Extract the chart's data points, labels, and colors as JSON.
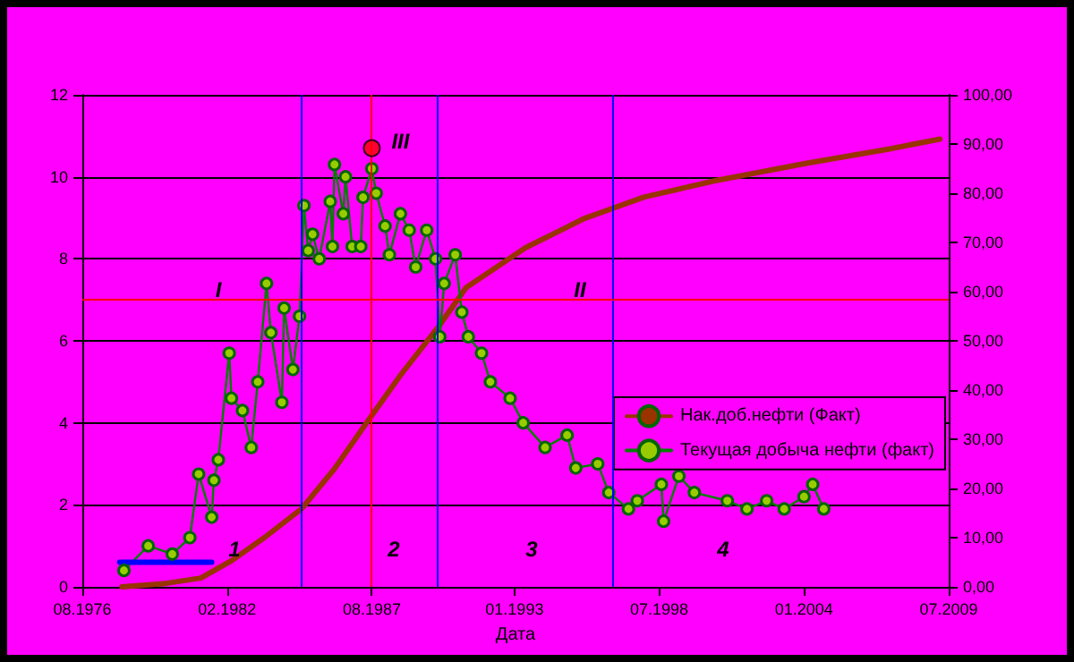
{
  "chart_data": {
    "type": "line",
    "xlabel": "Дата",
    "xlim": [
      "1976-08",
      "2009-07"
    ],
    "xticks": [
      {
        "value": "1976-08",
        "label": "08.1976"
      },
      {
        "value": "1982-02",
        "label": "02.1982"
      },
      {
        "value": "1987-08",
        "label": "08.1987"
      },
      {
        "value": "1993-01",
        "label": "01.1993"
      },
      {
        "value": "1998-07",
        "label": "07.1998"
      },
      {
        "value": "2004-01",
        "label": "01.2004"
      },
      {
        "value": "2009-07",
        "label": "07.2009"
      }
    ],
    "ylim": [
      0,
      12
    ],
    "yticks": [
      0,
      2,
      4,
      6,
      8,
      10,
      12
    ],
    "y2lim": [
      0,
      100
    ],
    "y2ticks": [
      {
        "value": 0,
        "label": "0,00"
      },
      {
        "value": 10,
        "label": "10,00"
      },
      {
        "value": 20,
        "label": "20,00"
      },
      {
        "value": 30,
        "label": "30,00"
      },
      {
        "value": 40,
        "label": "40,00"
      },
      {
        "value": 50,
        "label": "50,00"
      },
      {
        "value": 60,
        "label": "60,00"
      },
      {
        "value": 70,
        "label": "70,00"
      },
      {
        "value": 80,
        "label": "80,00"
      },
      {
        "value": 90,
        "label": "90,00"
      },
      {
        "value": 100,
        "label": "100,00"
      }
    ],
    "grid": "y",
    "legend": "right",
    "series": [
      {
        "name": "Нак.доб.нефти (Факт)",
        "color": "#993300",
        "axis": "y2",
        "marker": "none",
        "x": [
          "1978-02",
          "1979-10",
          "1981-02",
          "1982-04",
          "1983-07",
          "1984-12",
          "1986-03",
          "1987-06",
          "1988-09",
          "1990-02",
          "1991-03",
          "1993-06",
          "1995-09",
          "1997-12",
          "2000-08",
          "2004-01",
          "2007-04",
          "2009-03"
        ],
        "values": [
          0,
          0.7,
          1.8,
          5.3,
          10,
          15.9,
          24,
          33.6,
          43,
          52.7,
          60.8,
          68.9,
          74.9,
          79.2,
          82.5,
          86,
          89,
          91
        ]
      },
      {
        "name": "Текущая добыча нефти (факт)",
        "color": "#99cc00",
        "marker": "circle",
        "x": [
          "1978-03",
          "1979-02",
          "1980-01",
          "1980-09",
          "1981-01",
          "1981-07",
          "1981-08",
          "1981-10",
          "1982-03",
          "1982-04",
          "1982-09",
          "1983-01",
          "1983-04",
          "1983-08",
          "1983-10",
          "1984-03",
          "1984-04",
          "1984-08",
          "1984-11",
          "1985-01",
          "1985-03",
          "1985-05",
          "1985-08",
          "1986-01",
          "1986-02",
          "1986-03",
          "1986-07",
          "1986-08",
          "1986-11",
          "1987-03",
          "1987-04",
          "1987-08",
          "1987-10",
          "1988-02",
          "1988-04",
          "1988-09",
          "1989-01",
          "1989-04",
          "1989-09",
          "1990-01",
          "1990-03",
          "1990-05",
          "1990-10",
          "1991-01",
          "1991-04",
          "1991-10",
          "1992-02",
          "1992-11",
          "1993-05",
          "1994-03",
          "1995-01",
          "1995-05",
          "1996-03",
          "1996-08",
          "1997-05",
          "1997-09",
          "1998-08",
          "1998-09",
          "1999-04",
          "1999-11",
          "2001-02",
          "2001-11",
          "2002-08",
          "2003-04",
          "2004-01",
          "2004-05",
          "2004-10"
        ],
        "values": [
          0.4,
          1.0,
          0.8,
          1.2,
          2.75,
          1.7,
          2.6,
          3.1,
          5.7,
          4.6,
          4.3,
          3.4,
          5.0,
          7.4,
          6.2,
          4.5,
          6.8,
          5.3,
          6.6,
          9.3,
          8.2,
          8.6,
          8.0,
          9.4,
          8.3,
          10.3,
          9.1,
          10.0,
          8.3,
          8.3,
          9.5,
          10.2,
          9.6,
          8.8,
          8.1,
          9.1,
          8.7,
          7.8,
          8.7,
          8.0,
          6.1,
          7.4,
          8.1,
          6.7,
          6.1,
          5.7,
          5.0,
          4.6,
          4.0,
          3.4,
          3.7,
          2.9,
          3.0,
          2.3,
          1.9,
          2.1,
          2.5,
          1.6,
          2.7,
          2.3,
          2.1,
          1.9,
          2.1,
          1.9,
          2.2,
          2.5,
          1.9
        ]
      },
      {
        "color": "#0000ff",
        "marker": "none",
        "x": [
          "1978-01",
          "1981-07"
        ],
        "values": [
          0.6,
          0.6
        ]
      },
      {
        "type": "scatter",
        "color": "#ff0000",
        "marker": "circle",
        "x": [
          "1987-08"
        ],
        "values": [
          10.7
        ]
      }
    ],
    "ref_lines": [
      {
        "axis": "x",
        "value": "1984-12",
        "color": "#0000ff"
      },
      {
        "axis": "x",
        "value": "1987-08",
        "color": "#ff0000"
      },
      {
        "axis": "x",
        "value": "1990-02",
        "color": "#0000ff"
      },
      {
        "axis": "x",
        "value": "1996-10",
        "color": "#0000ff"
      },
      {
        "axis": "y",
        "value": 7,
        "color": "#ff0000"
      }
    ],
    "annotations": [
      "I",
      "II",
      {
        "text": "III",
        "x": "1987-08",
        "y": 10.7
      },
      "1",
      "2",
      "3",
      "4"
    ]
  }
}
